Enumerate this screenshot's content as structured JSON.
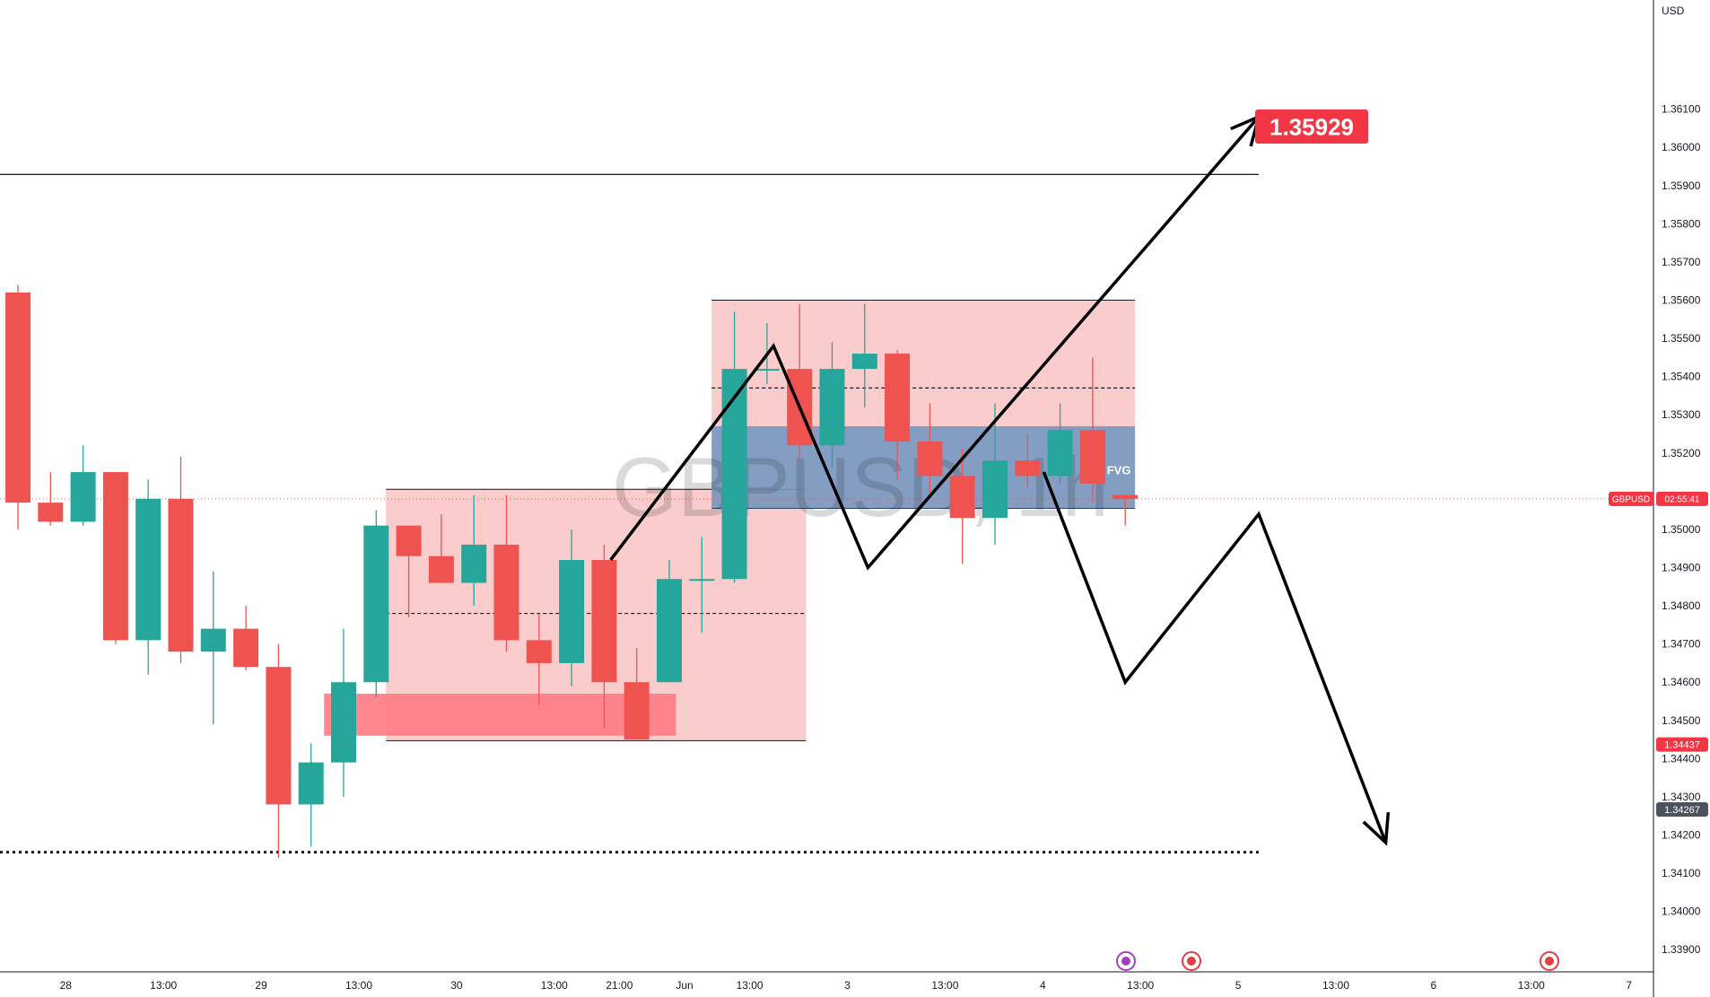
{
  "chart_data": {
    "type": "candlestick",
    "symbol_watermark": "GBPUSD, 1h",
    "currency": "USD",
    "colors": {
      "up": "#26a69a",
      "down": "#ef5350",
      "zone_red": "#f8bbbb",
      "zone_blue": "#5b8fbf",
      "badge_red": "#f23645",
      "badge_grey": "#4c525e",
      "axis_line": "#131722",
      "grid_text": "#131722"
    },
    "price_axis": {
      "ticks": [
        "1.36100",
        "1.36000",
        "1.35900",
        "1.35800",
        "1.35700",
        "1.35600",
        "1.35500",
        "1.35400",
        "1.35300",
        "1.35200",
        "1.35000",
        "1.34900",
        "1.34800",
        "1.34700",
        "1.34600",
        "1.34500",
        "1.34400",
        "1.34300",
        "1.34200",
        "1.34100",
        "1.34000",
        "1.33900"
      ],
      "ylim": [
        1.3387,
        1.3624
      ]
    },
    "time_axis": {
      "labels": [
        "28",
        "13:00",
        "29",
        "13:00",
        "30",
        "13:00",
        "21:00",
        "Jun",
        "13:00",
        "3",
        "13:00",
        "4",
        "13:00",
        "5",
        "13:00",
        "6",
        "13:00",
        "7"
      ],
      "x_index": [
        1.0,
        4.0,
        7.0,
        10.0,
        13.0,
        16.0,
        18.0,
        20.0,
        22.0,
        25.0,
        28.0,
        31.0,
        34.0,
        37.0,
        40.0,
        43.0,
        46.0,
        49.0
      ]
    },
    "candles": [
      {
        "o": 1.3562,
        "h": 1.3564,
        "l": 1.35,
        "c": 1.3507
      },
      {
        "o": 1.3507,
        "h": 1.3515,
        "l": 1.3501,
        "c": 1.3502
      },
      {
        "o": 1.3502,
        "h": 1.3522,
        "l": 1.3501,
        "c": 1.3515
      },
      {
        "o": 1.3515,
        "h": 1.3515,
        "l": 1.347,
        "c": 1.3471
      },
      {
        "o": 1.3471,
        "h": 1.3513,
        "l": 1.3462,
        "c": 1.3508
      },
      {
        "o": 1.3508,
        "h": 1.3519,
        "l": 1.3465,
        "c": 1.3468
      },
      {
        "o": 1.3468,
        "h": 1.3489,
        "l": 1.3449,
        "c": 1.3474
      },
      {
        "o": 1.3474,
        "h": 1.348,
        "l": 1.3463,
        "c": 1.3464
      },
      {
        "o": 1.3464,
        "h": 1.347,
        "l": 1.3414,
        "c": 1.3428
      },
      {
        "o": 1.3428,
        "h": 1.3444,
        "l": 1.3417,
        "c": 1.3439
      },
      {
        "o": 1.3439,
        "h": 1.3474,
        "l": 1.343,
        "c": 1.346
      },
      {
        "o": 1.346,
        "h": 1.3505,
        "l": 1.3456,
        "c": 1.3501
      },
      {
        "o": 1.3501,
        "h": 1.3501,
        "l": 1.3477,
        "c": 1.3493
      },
      {
        "o": 1.3493,
        "h": 1.3504,
        "l": 1.3486,
        "c": 1.3486
      },
      {
        "o": 1.3486,
        "h": 1.3509,
        "l": 1.348,
        "c": 1.3496
      },
      {
        "o": 1.3496,
        "h": 1.3509,
        "l": 1.3468,
        "c": 1.3471
      },
      {
        "o": 1.3471,
        "h": 1.3478,
        "l": 1.3454,
        "c": 1.3465
      },
      {
        "o": 1.3465,
        "h": 1.35,
        "l": 1.3459,
        "c": 1.3492
      },
      {
        "o": 1.3492,
        "h": 1.3496,
        "l": 1.3448,
        "c": 1.346
      },
      {
        "o": 1.346,
        "h": 1.3469,
        "l": 1.3445,
        "c": 1.3445
      },
      {
        "o": 1.346,
        "h": 1.3492,
        "l": 1.346,
        "c": 1.3487
      },
      {
        "o": 1.3487,
        "h": 1.3498,
        "l": 1.3473,
        "c": 1.3487
      },
      {
        "o": 1.3487,
        "h": 1.3557,
        "l": 1.3486,
        "c": 1.3542
      },
      {
        "o": 1.3542,
        "h": 1.3554,
        "l": 1.3538,
        "c": 1.3542
      },
      {
        "o": 1.3542,
        "h": 1.3559,
        "l": 1.3518,
        "c": 1.3522
      },
      {
        "o": 1.3522,
        "h": 1.3549,
        "l": 1.3516,
        "c": 1.3542
      },
      {
        "o": 1.3542,
        "h": 1.3559,
        "l": 1.3532,
        "c": 1.3546
      },
      {
        "o": 1.3546,
        "h": 1.3547,
        "l": 1.3513,
        "c": 1.3523
      },
      {
        "o": 1.3523,
        "h": 1.3533,
        "l": 1.3509,
        "c": 1.3514
      },
      {
        "o": 1.3514,
        "h": 1.3521,
        "l": 1.3491,
        "c": 1.3503
      },
      {
        "o": 1.3503,
        "h": 1.3533,
        "l": 1.3496,
        "c": 1.3518
      },
      {
        "o": 1.3518,
        "h": 1.3525,
        "l": 1.3511,
        "c": 1.3514
      },
      {
        "o": 1.3514,
        "h": 1.3533,
        "l": 1.3512,
        "c": 1.3526
      },
      {
        "o": 1.3526,
        "h": 1.3545,
        "l": 1.3507,
        "c": 1.3512
      },
      {
        "o": 1.3509,
        "h": 1.3509,
        "l": 1.3501,
        "c": 1.3508
      }
    ],
    "zones": [
      {
        "x0": 11.3,
        "x1": 24.2,
        "y0": 1.34447,
        "y1": 1.35105,
        "color": "red",
        "dashed_mid": 1.3478
      },
      {
        "x0": 21.3,
        "x1": 34.3,
        "y0": 1.35055,
        "y1": 1.356,
        "color": "red",
        "dashed_mid": 1.3537
      },
      {
        "x0": 9.4,
        "x1": 20.2,
        "y0": 1.3446,
        "y1": 1.3457,
        "color": "deep_red"
      },
      {
        "x0": 21.3,
        "x1": 34.3,
        "y0": 1.35055,
        "y1": 1.3527,
        "color": "blue",
        "label": "FVG"
      }
    ],
    "levels": [
      {
        "price": 1.35929,
        "x0": 0,
        "x1": 38.1,
        "style": "solid",
        "label": "1.35929"
      },
      {
        "price": 1.34155,
        "x0": 0,
        "x1": 38.1,
        "style": "dotted"
      }
    ],
    "paths": [
      {
        "points": [
          [
            18.2,
            1.3492
          ],
          [
            23.2,
            1.3548
          ],
          [
            26.1,
            1.349
          ],
          [
            38.1,
            1.3608
          ]
        ],
        "arrow": true
      },
      {
        "points": [
          [
            31.5,
            1.3515
          ],
          [
            34.0,
            1.346
          ],
          [
            38.1,
            1.3504
          ],
          [
            42.0,
            1.3418
          ]
        ],
        "arrow": true
      }
    ],
    "badges": {
      "symbol": "GBPUSD",
      "countdown": "02:55:41",
      "last_price": 1.3508,
      "price_a": "1.34437",
      "price_b": "1.34267"
    }
  }
}
